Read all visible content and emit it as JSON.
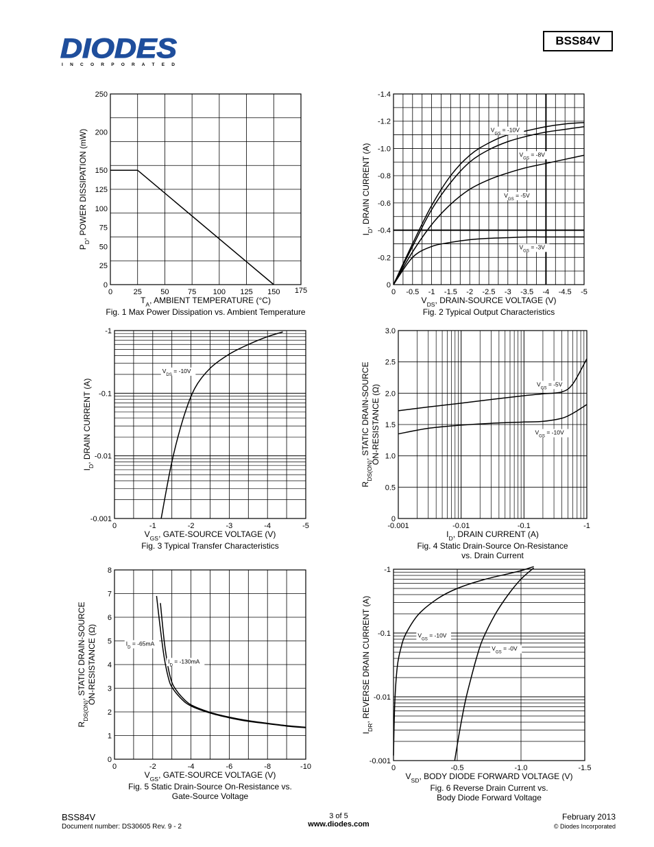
{
  "header": {
    "logo_text": "DIODES",
    "logo_subtext": "I N C O R P O R A T E D",
    "part_number": "BSS84V",
    "brand_color": "#1f4e9c"
  },
  "footer": {
    "part": "BSS84V",
    "doc_number": "Document number: DS30605 Rev. 9 - 2",
    "page": "3 of 5",
    "url": "www.diodes.com",
    "date": "February 2013",
    "copyright": "© Diodes Incorporated"
  },
  "chart_data": [
    {
      "id": "fig1",
      "type": "line",
      "caption": "Fig. 1 Max Power Dissipation vs. Ambient Temperature",
      "xlabel": "T_A, AMBIENT TEMPERATURE (°C)",
      "ylabel": "P_D, POWER DISSIPATION (mW)",
      "xlim": [
        0,
        175
      ],
      "ylim": [
        0,
        250
      ],
      "xticks": [
        "0",
        "25",
        "50",
        "75",
        "100",
        "125",
        "150",
        "175"
      ],
      "yticks": [
        "0",
        "25",
        "50",
        "75",
        "100",
        "125",
        "150",
        "200",
        "250"
      ],
      "grid": true,
      "series": [
        {
          "x": [
            0,
            25,
            150
          ],
          "y": [
            150,
            150,
            0
          ]
        }
      ]
    },
    {
      "id": "fig2",
      "type": "line",
      "caption": "Fig. 2  Typical Output Characteristics",
      "xlabel": "V_DS, DRAIN-SOURCE VOLTAGE (V)",
      "ylabel": "I_D, DRAIN CURRENT (A)",
      "xlim": [
        0,
        -5
      ],
      "ylim": [
        0,
        -1.4
      ],
      "xticks": [
        "0",
        "-0.5",
        "-1",
        "-1.5",
        "-2",
        "-2.5",
        "-3",
        "-3.5",
        "-4",
        "-4.5",
        "-5"
      ],
      "yticks": [
        "0",
        "-0.2",
        "-0.4",
        "-0.6",
        "-0.8",
        "-1.0",
        "-1.2",
        "-1.4"
      ],
      "grid": true,
      "series": [
        {
          "name": "V_GS = -10V",
          "x": [
            0,
            -0.5,
            -1,
            -1.5,
            -2,
            -2.5,
            -3,
            -3.5,
            -4,
            -4.5,
            -5
          ],
          "y": [
            0,
            -0.3,
            -0.58,
            -0.8,
            -0.95,
            -1.04,
            -1.1,
            -1.13,
            -1.16,
            -1.18,
            -1.19
          ]
        },
        {
          "name": "V_GS = -8V",
          "x": [
            0,
            -0.5,
            -1,
            -1.5,
            -2,
            -2.5,
            -3,
            -3.5,
            -4,
            -4.5,
            -5
          ],
          "y": [
            0,
            -0.28,
            -0.55,
            -0.75,
            -0.9,
            -0.99,
            -1.05,
            -1.09,
            -1.12,
            -1.14,
            -1.16
          ]
        },
        {
          "name": "V_GS = -5V",
          "x": [
            0,
            -0.5,
            -1,
            -1.5,
            -2,
            -2.5,
            -3,
            -3.5,
            -4,
            -4.5,
            -5
          ],
          "y": [
            0,
            -0.24,
            -0.44,
            -0.59,
            -0.7,
            -0.77,
            -0.82,
            -0.86,
            -0.89,
            -0.92,
            -0.95
          ]
        },
        {
          "name": "V_GS = -3V",
          "x": [
            0,
            -0.5,
            -1,
            -1.5,
            -2,
            -2.5,
            -3,
            -3.5,
            -4,
            -4.5,
            -5
          ],
          "y": [
            0,
            -0.2,
            -0.28,
            -0.31,
            -0.33,
            -0.34,
            -0.345,
            -0.35,
            -0.35,
            -0.35,
            -0.35
          ]
        }
      ]
    },
    {
      "id": "fig3",
      "type": "line",
      "caption": "Fig. 3  Typical Transfer Characteristics",
      "xlabel": "V_GS, GATE-SOURCE VOLTAGE (V)",
      "ylabel": "I_D, DRAIN CURRENT (A)",
      "xlim": [
        0,
        -5
      ],
      "ylim": [
        -0.001,
        -1
      ],
      "yscale": "log",
      "xticks": [
        "0",
        "-1",
        "-2",
        "-3",
        "-4",
        "-5"
      ],
      "yticks": [
        "-0.001",
        "-0.01",
        "-0.1",
        "-1"
      ],
      "grid": true,
      "series": [
        {
          "name": "V_DS = -10V",
          "x": [
            -1.22,
            -1.5,
            -1.8,
            -2.1,
            -2.5,
            -3,
            -3.5,
            -4.0,
            -4.4
          ],
          "y": [
            -0.001,
            -0.008,
            -0.04,
            -0.12,
            -0.25,
            -0.42,
            -0.6,
            -0.8,
            -0.95
          ]
        }
      ]
    },
    {
      "id": "fig4",
      "type": "line",
      "caption": "Fig. 4  Static Drain-Source On-Resistance vs. Drain Current",
      "xlabel": "I_D, DRAIN CURRENT (A)",
      "ylabel": "R_DS(ON), STATIC DRAIN-SOURCE ON-RESISTANCE (Ω)",
      "xlim": [
        -0.001,
        -1
      ],
      "xscale": "log",
      "ylim": [
        0,
        3.0
      ],
      "xticks": [
        "-0.001",
        "-0.01",
        "-0.1",
        "-1"
      ],
      "yticks": [
        "0",
        "0.5",
        "1.0",
        "1.5",
        "2.0",
        "2.5",
        "3.0"
      ],
      "grid": true,
      "series": [
        {
          "name": "V_GS = -5V",
          "x": [
            -0.001,
            -0.003,
            -0.01,
            -0.03,
            -0.1,
            -0.2,
            -0.4,
            -0.6,
            -1
          ],
          "y": [
            1.72,
            1.78,
            1.84,
            1.9,
            1.96,
            1.99,
            2.02,
            2.15,
            2.55
          ]
        },
        {
          "name": "V_GS = -10V",
          "x": [
            -0.001,
            -0.003,
            -0.01,
            -0.03,
            -0.1,
            -0.2,
            -0.4,
            -0.6,
            -1
          ],
          "y": [
            1.35,
            1.44,
            1.49,
            1.52,
            1.54,
            1.55,
            1.6,
            1.68,
            1.82
          ]
        }
      ]
    },
    {
      "id": "fig5",
      "type": "line",
      "caption": "Fig. 5  Static Drain-Source On-Resistance vs. Gate-Source Voltage",
      "xlabel": "V_GS, GATE-SOURCE VOLTAGE (V)",
      "ylabel": "R_DS(ON), STATIC DRAIN-SOURCE ON-RESISTANCE (Ω)",
      "xlim": [
        0,
        -10
      ],
      "ylim": [
        0,
        8
      ],
      "xticks": [
        "0",
        "-2",
        "-4",
        "-6",
        "-8",
        "-10"
      ],
      "yticks": [
        "0",
        "1",
        "2",
        "3",
        "4",
        "5",
        "6",
        "7",
        "8"
      ],
      "grid": true,
      "series": [
        {
          "name": "I_D = -65mA",
          "x": [
            -2.2,
            -2.4,
            -2.6,
            -2.8,
            -3.0,
            -3.5,
            -4,
            -5,
            -6,
            -7,
            -8,
            -9,
            -10
          ],
          "y": [
            6.9,
            5.5,
            4.3,
            3.5,
            3.05,
            2.55,
            2.25,
            1.95,
            1.75,
            1.6,
            1.5,
            1.4,
            1.33
          ]
        },
        {
          "name": "I_D = -130mA",
          "x": [
            -2.4,
            -2.6,
            -2.8,
            -3.0,
            -3.2,
            -3.5,
            -4,
            -5,
            -6,
            -7,
            -8,
            -9,
            -10
          ],
          "y": [
            6.6,
            5.0,
            3.9,
            3.25,
            2.95,
            2.65,
            2.3,
            1.98,
            1.78,
            1.63,
            1.52,
            1.42,
            1.35
          ]
        }
      ]
    },
    {
      "id": "fig6",
      "type": "line",
      "caption": "Fig. 6  Reverse Drain Current vs. Body Diode Forward Voltage",
      "xlabel": "V_SD, BODY DIODE FORWARD VOLTAGE (V)",
      "ylabel": "I_DR, REVERSE DRAIN CURRENT (A)",
      "xlim": [
        0,
        -1.5
      ],
      "ylim": [
        -0.001,
        -1
      ],
      "yscale": "log",
      "xticks": [
        "0",
        "-0.5",
        "-1.0",
        "-1.5"
      ],
      "yticks": [
        "-0.001",
        "-0.01",
        "-0.1",
        "-1"
      ],
      "grid": true,
      "series": [
        {
          "name": "V_GS = -10V",
          "x": [
            0,
            -0.01,
            -0.03,
            -0.06,
            -0.1,
            -0.2,
            -0.35,
            -0.5,
            -0.7,
            -0.9,
            -1.0,
            -1.1
          ],
          "y": [
            -0.0012,
            -0.008,
            -0.03,
            -0.06,
            -0.1,
            -0.2,
            -0.35,
            -0.5,
            -0.68,
            -0.85,
            -0.95,
            -1.1
          ]
        },
        {
          "name": "V_GS = -0V",
          "x": [
            -0.48,
            -0.52,
            -0.56,
            -0.6,
            -0.65,
            -0.7,
            -0.8,
            -0.9,
            -1.0,
            -1.1
          ],
          "y": [
            -0.001,
            -0.003,
            -0.008,
            -0.017,
            -0.04,
            -0.08,
            -0.2,
            -0.4,
            -0.7,
            -1.05
          ]
        }
      ]
    }
  ]
}
